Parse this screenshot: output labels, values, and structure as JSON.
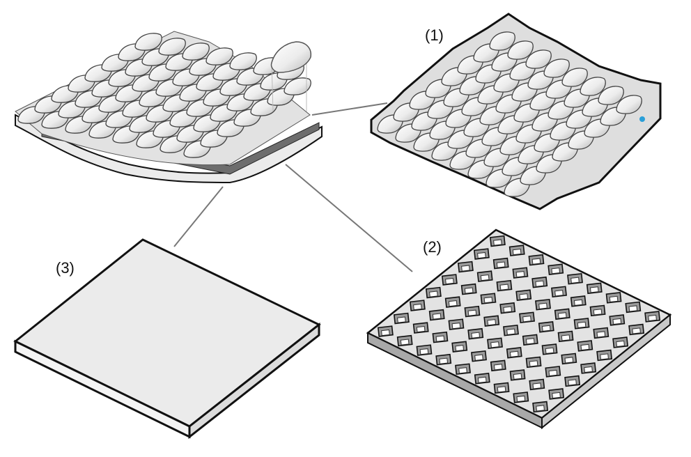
{
  "figure": {
    "labels": {
      "scales": "(1)",
      "grid": "(2)",
      "base": "(3)"
    },
    "colors": {
      "scale_light": "#f6f6f6",
      "scale_mid": "#d9d9d9",
      "scale_dark": "#9a9a9a",
      "grid_face": "#e3e3e3",
      "grid_side": "#a9a9a9",
      "base_top": "#ebebeb",
      "base_side": "#f4f4f4",
      "outline": "#111111",
      "connector": "#777777",
      "marker": "#2a9fd8"
    }
  }
}
